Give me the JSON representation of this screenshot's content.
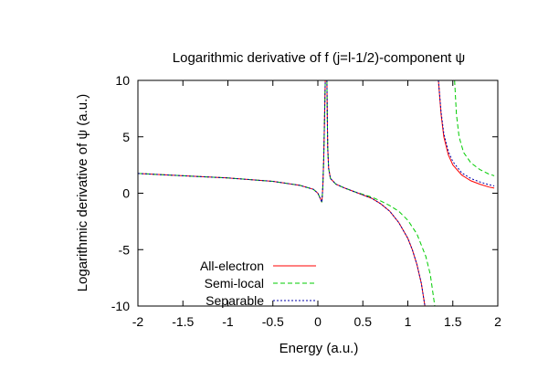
{
  "chart_data": {
    "type": "line",
    "title": "Logarithmic derivative of f (j=l-1/2)-component ψ",
    "xlabel": "Energy (a.u.)",
    "ylabel": "Logarithmic derivative of ψ (a.u.)",
    "xlim": [
      -2,
      2
    ],
    "ylim": [
      -10,
      10
    ],
    "xticks": [
      "-2",
      "-1.5",
      "-1",
      "-0.5",
      "0",
      "0.5",
      "1",
      "1.5",
      "2"
    ],
    "yticks": [
      "-10",
      "-5",
      "0",
      "5",
      "10"
    ],
    "grid": false,
    "legend_position": "bottom-left",
    "series": [
      {
        "name": "All-electron",
        "color": "#ff0000",
        "dash": "solid",
        "segments": [
          [
            [
              -2.0,
              1.75
            ],
            [
              -1.5,
              1.55
            ],
            [
              -1.0,
              1.35
            ],
            [
              -0.5,
              1.05
            ],
            [
              -0.2,
              0.7
            ],
            [
              -0.05,
              0.35
            ],
            [
              0.0,
              0.0
            ],
            [
              0.02,
              -0.35
            ],
            [
              0.045,
              -0.8
            ],
            [
              0.055,
              0.5
            ],
            [
              0.065,
              3.0
            ],
            [
              0.075,
              7.0
            ],
            [
              0.082,
              10.0
            ]
          ],
          [
            [
              0.1,
              10.0
            ],
            [
              0.105,
              7.0
            ],
            [
              0.11,
              4.0
            ],
            [
              0.12,
              2.2
            ],
            [
              0.14,
              1.3
            ],
            [
              0.2,
              0.8
            ],
            [
              0.3,
              0.45
            ],
            [
              0.4,
              0.15
            ],
            [
              0.5,
              -0.15
            ],
            [
              0.6,
              -0.45
            ],
            [
              0.7,
              -0.95
            ],
            [
              0.8,
              -1.6
            ],
            [
              0.9,
              -2.6
            ],
            [
              1.0,
              -4.0
            ],
            [
              1.05,
              -5.0
            ],
            [
              1.1,
              -6.3
            ],
            [
              1.15,
              -8.0
            ],
            [
              1.19,
              -10.0
            ]
          ],
          [
            [
              1.34,
              10.0
            ],
            [
              1.37,
              7.0
            ],
            [
              1.4,
              5.0
            ],
            [
              1.45,
              3.4
            ],
            [
              1.5,
              2.5
            ],
            [
              1.6,
              1.6
            ],
            [
              1.7,
              1.1
            ],
            [
              1.8,
              0.8
            ],
            [
              1.9,
              0.55
            ],
            [
              1.96,
              0.45
            ]
          ]
        ]
      },
      {
        "name": "Semi-local",
        "color": "#00cc00",
        "dash": "dashed",
        "segments": [
          [
            [
              -2.0,
              1.75
            ],
            [
              -1.5,
              1.55
            ],
            [
              -1.0,
              1.35
            ],
            [
              -0.5,
              1.05
            ],
            [
              -0.2,
              0.7
            ],
            [
              -0.05,
              0.35
            ],
            [
              0.0,
              0.0
            ],
            [
              0.02,
              -0.35
            ],
            [
              0.045,
              -0.8
            ],
            [
              0.055,
              0.5
            ],
            [
              0.065,
              3.0
            ],
            [
              0.075,
              7.0
            ],
            [
              0.082,
              10.0
            ]
          ],
          [
            [
              0.1,
              10.0
            ],
            [
              0.105,
              7.0
            ],
            [
              0.11,
              4.0
            ],
            [
              0.12,
              2.2
            ],
            [
              0.14,
              1.3
            ],
            [
              0.2,
              0.8
            ],
            [
              0.3,
              0.45
            ],
            [
              0.4,
              0.15
            ],
            [
              0.5,
              -0.1
            ],
            [
              0.6,
              -0.35
            ],
            [
              0.7,
              -0.7
            ],
            [
              0.8,
              -1.1
            ],
            [
              0.9,
              -1.6
            ],
            [
              1.0,
              -2.4
            ],
            [
              1.1,
              -3.6
            ],
            [
              1.2,
              -5.6
            ],
            [
              1.25,
              -7.2
            ],
            [
              1.3,
              -10.0
            ]
          ],
          [
            [
              1.52,
              10.0
            ],
            [
              1.54,
              7.0
            ],
            [
              1.57,
              5.0
            ],
            [
              1.62,
              3.6
            ],
            [
              1.7,
              2.7
            ],
            [
              1.8,
              2.1
            ],
            [
              1.9,
              1.7
            ],
            [
              1.96,
              1.55
            ]
          ]
        ]
      },
      {
        "name": "Separable",
        "color": "#0000aa",
        "dash": "dotted",
        "segments": [
          [
            [
              -2.0,
              1.75
            ],
            [
              -1.5,
              1.55
            ],
            [
              -1.0,
              1.35
            ],
            [
              -0.5,
              1.05
            ],
            [
              -0.2,
              0.7
            ],
            [
              -0.05,
              0.35
            ],
            [
              0.0,
              0.0
            ],
            [
              0.02,
              -0.35
            ],
            [
              0.045,
              -0.8
            ],
            [
              0.055,
              0.5
            ],
            [
              0.065,
              3.0
            ],
            [
              0.075,
              7.0
            ],
            [
              0.082,
              10.0
            ]
          ],
          [
            [
              0.1,
              10.0
            ],
            [
              0.105,
              7.0
            ],
            [
              0.11,
              4.0
            ],
            [
              0.12,
              2.2
            ],
            [
              0.14,
              1.3
            ],
            [
              0.2,
              0.8
            ],
            [
              0.3,
              0.45
            ],
            [
              0.4,
              0.15
            ],
            [
              0.5,
              -0.15
            ],
            [
              0.6,
              -0.45
            ],
            [
              0.7,
              -0.95
            ],
            [
              0.8,
              -1.6
            ],
            [
              0.9,
              -2.6
            ],
            [
              1.0,
              -4.0
            ],
            [
              1.05,
              -5.0
            ],
            [
              1.1,
              -6.3
            ],
            [
              1.15,
              -8.0
            ],
            [
              1.19,
              -10.0
            ]
          ],
          [
            [
              1.34,
              10.0
            ],
            [
              1.37,
              7.2
            ],
            [
              1.4,
              5.3
            ],
            [
              1.45,
              3.7
            ],
            [
              1.5,
              2.8
            ],
            [
              1.6,
              1.8
            ],
            [
              1.7,
              1.3
            ],
            [
              1.8,
              1.0
            ],
            [
              1.9,
              0.75
            ],
            [
              1.96,
              0.65
            ]
          ]
        ]
      }
    ]
  }
}
